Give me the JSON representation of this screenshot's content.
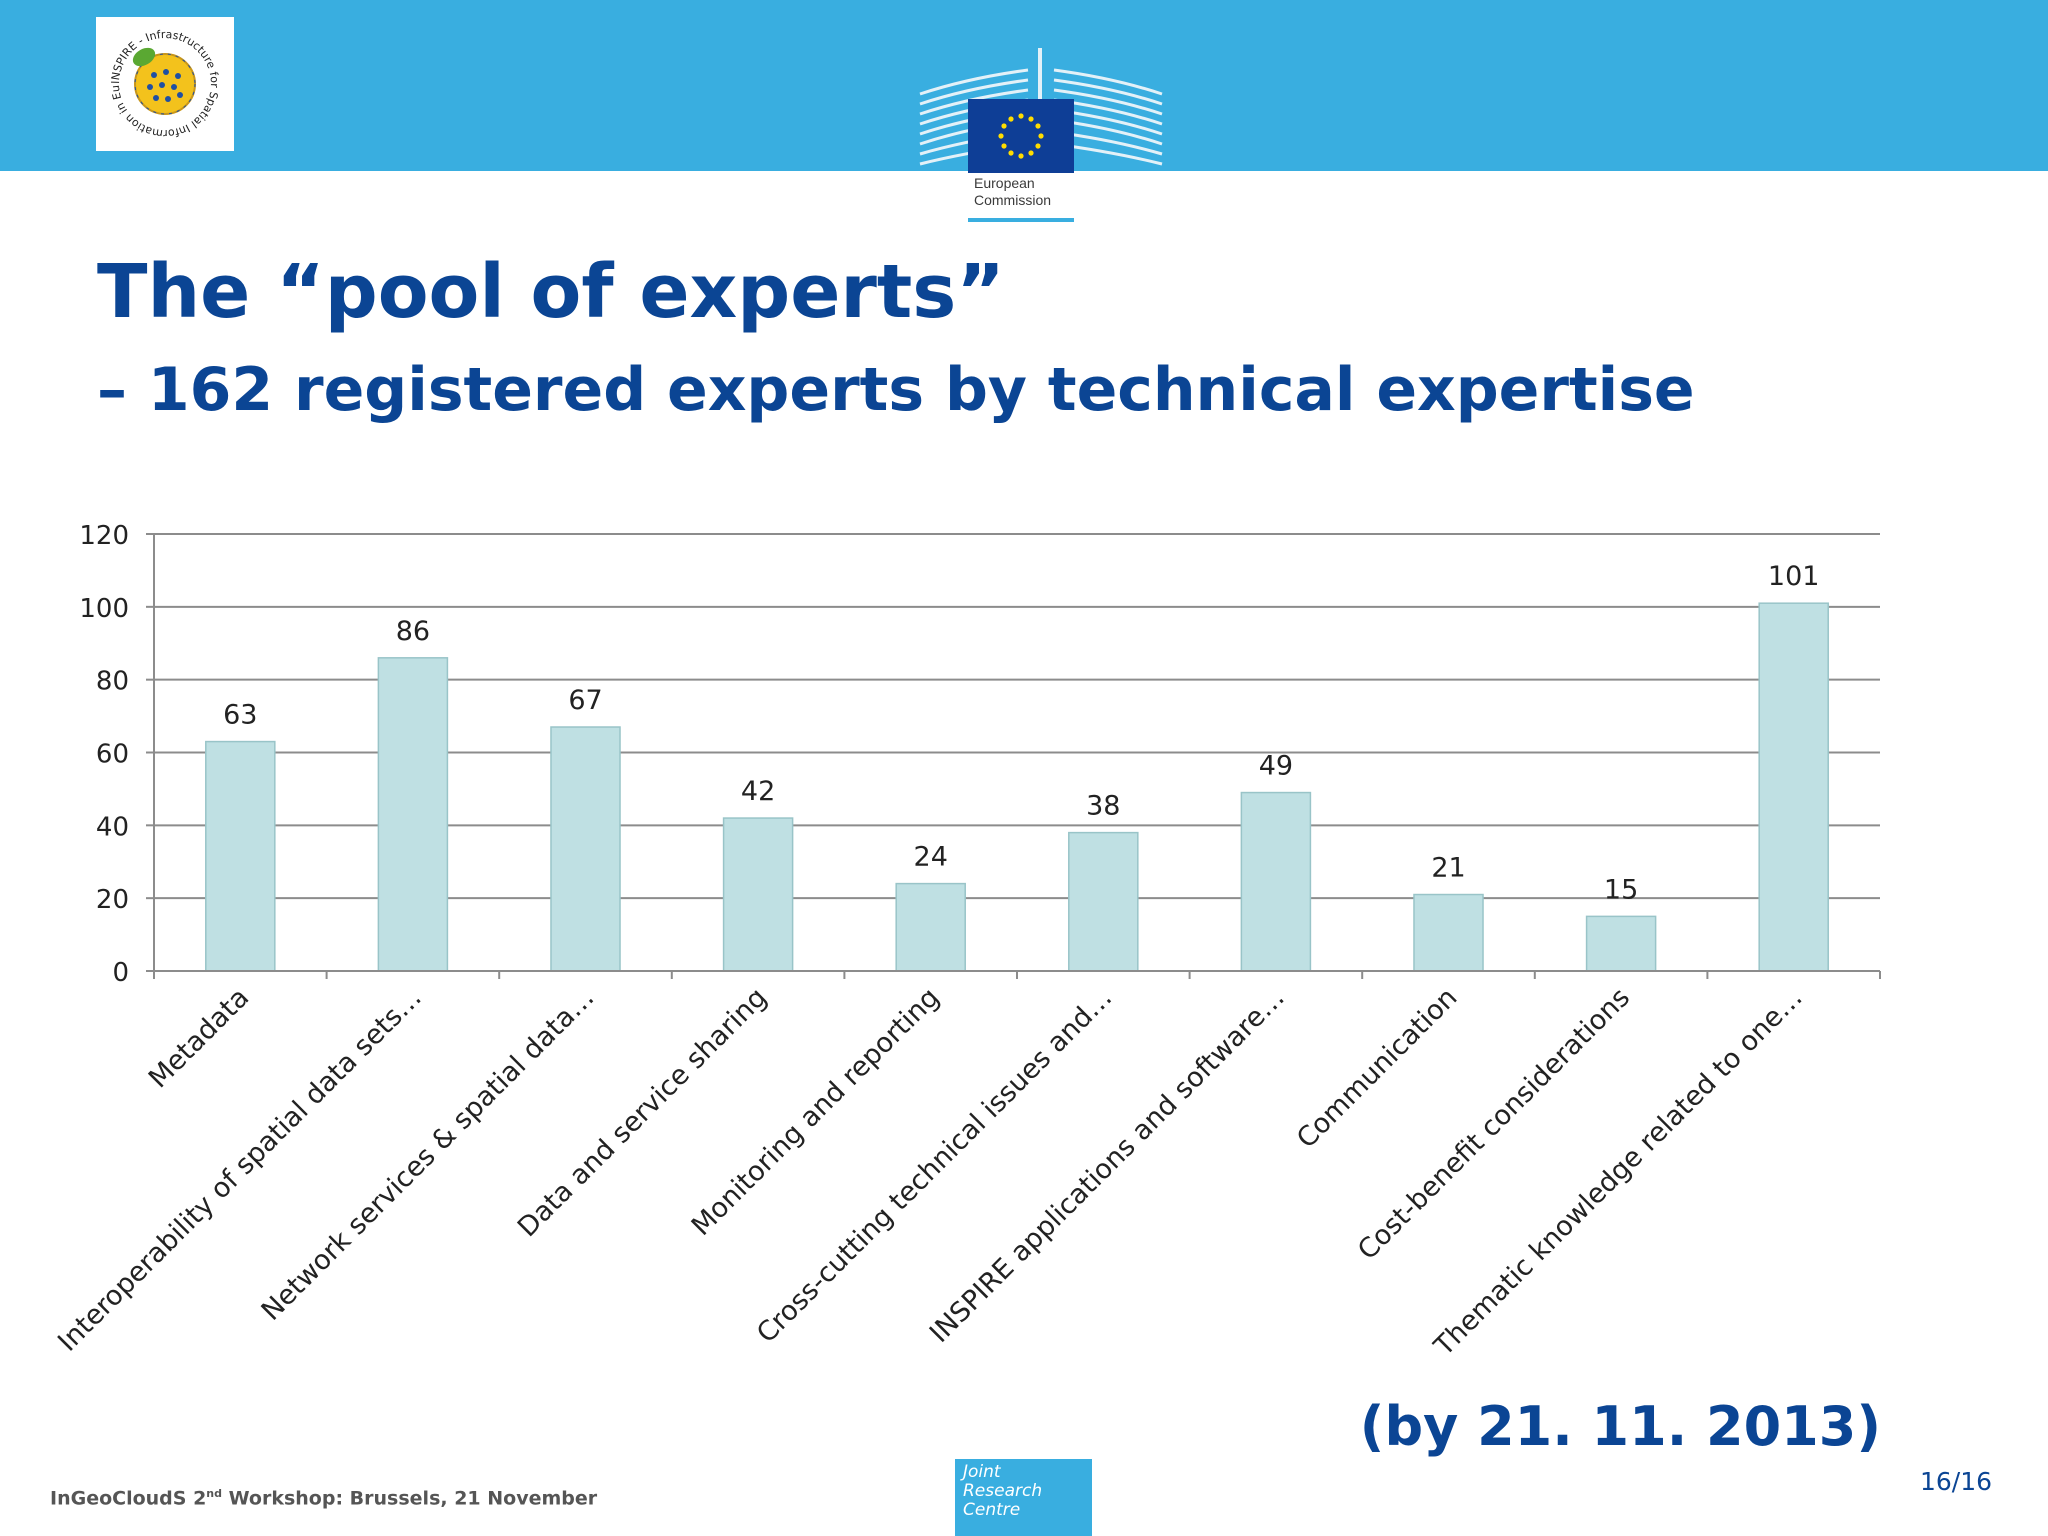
{
  "header": {
    "inspire_logo_text": "INSPIRE - Infrastructure for Spatial Information in Europe",
    "ec_logo_lines": [
      "European",
      "Commission"
    ]
  },
  "slide": {
    "title": "The “pool of experts”",
    "subtitle": "– 162 registered experts by technical expertise",
    "date_note": "(by 21. 11. 2013)",
    "page": "16/16"
  },
  "footer": {
    "workshop_pre": "InGeoCloudS 2",
    "workshop_sup": "nd",
    "workshop_post": " Workshop: Brussels, 21 November",
    "jrc_lines": [
      "Joint",
      "Research",
      "Centre"
    ]
  },
  "colors": {
    "brand_blue": "#39aee0",
    "title_blue": "#0b4594",
    "bar_fill": "#bfe0e3",
    "bar_stroke": "#99c4c8"
  },
  "chart_data": {
    "type": "bar",
    "categories": [
      "Metadata",
      "Interoperability of spatial data sets…",
      "Network services & spatial data…",
      "Data and service sharing",
      "Monitoring and reporting",
      "Cross-cutting technical issues and…",
      "INSPIRE applications and software…",
      "Communication",
      "Cost-benefit considerations",
      "Thematic knowledge related to one…"
    ],
    "values": [
      63,
      86,
      67,
      42,
      24,
      38,
      49,
      21,
      15,
      101
    ],
    "yticks": [
      0,
      20,
      40,
      60,
      80,
      100,
      120
    ],
    "ylim": [
      0,
      120
    ],
    "grid": true,
    "legend": "none"
  }
}
